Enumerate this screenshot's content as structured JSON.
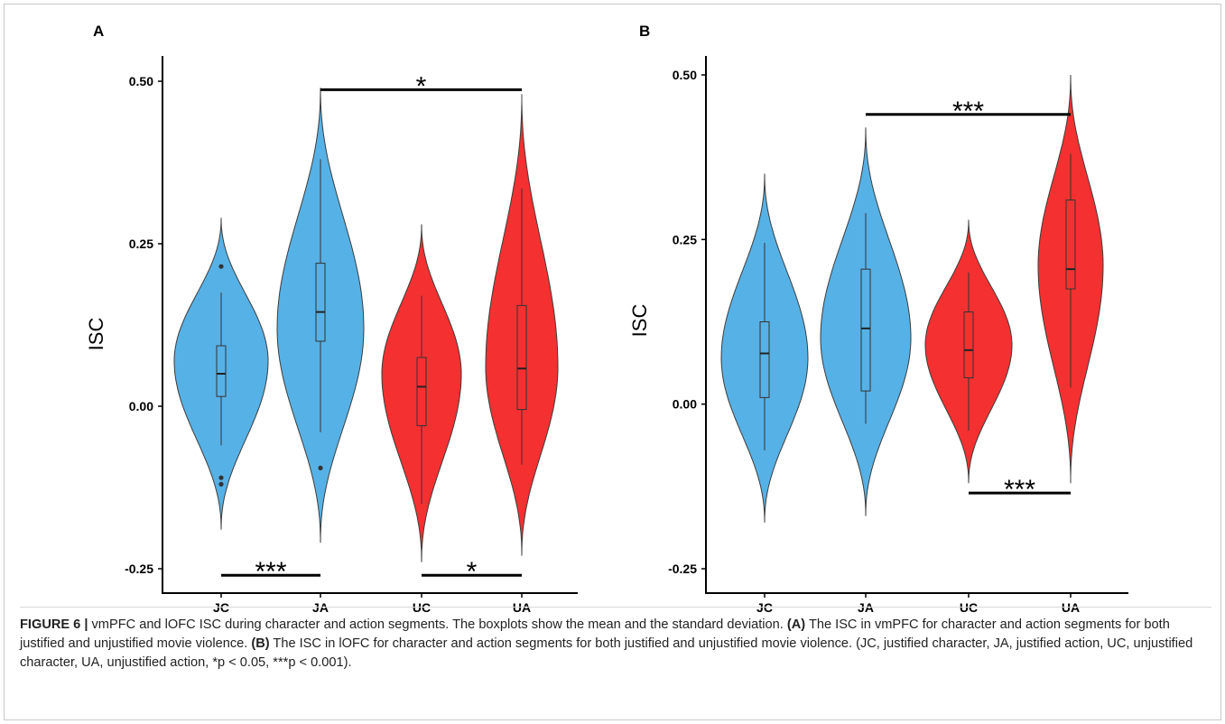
{
  "chart_data": [
    {
      "type": "violin",
      "panel_label": "A",
      "ylabel": "ISC",
      "ylim": [
        -0.25,
        0.5
      ],
      "yticks": [
        -0.25,
        0.0,
        0.25,
        0.5
      ],
      "ytick_labels": [
        "-0.25",
        "0.00",
        "0.25",
        "0.50"
      ],
      "categories": [
        "JC",
        "JA",
        "UC",
        "UA"
      ],
      "colors": [
        "#56b1e6",
        "#56b1e6",
        "#f43030",
        "#f43030"
      ],
      "groups": [
        {
          "name": "JC",
          "min": -0.19,
          "max": 0.29,
          "peak": 0.07,
          "q1": 0.015,
          "median": 0.05,
          "q3": 0.093,
          "whisker_low": -0.06,
          "whisker_high": 0.175,
          "outliers": [
            0.215,
            -0.11,
            -0.12
          ]
        },
        {
          "name": "JA",
          "min": -0.21,
          "max": 0.49,
          "peak": 0.12,
          "q1": 0.1,
          "median": 0.145,
          "q3": 0.22,
          "whisker_low": -0.04,
          "whisker_high": 0.38,
          "outliers": [
            -0.095
          ]
        },
        {
          "name": "UC",
          "min": -0.24,
          "max": 0.28,
          "peak": 0.05,
          "q1": -0.03,
          "median": 0.03,
          "q3": 0.075,
          "whisker_low": -0.15,
          "whisker_high": 0.17,
          "outliers": []
        },
        {
          "name": "UA",
          "min": -0.23,
          "max": 0.48,
          "peak": 0.06,
          "q1": -0.005,
          "median": 0.058,
          "q3": 0.155,
          "whisker_low": -0.09,
          "whisker_high": 0.335,
          "outliers": []
        }
      ],
      "significance": [
        {
          "from": "JC",
          "to": "JA",
          "label": "***",
          "y": -0.26
        },
        {
          "from": "UC",
          "to": "UA",
          "label": "*",
          "y": -0.26
        },
        {
          "from": "JA",
          "to": "UA",
          "label": "*",
          "y": 0.487
        }
      ]
    },
    {
      "type": "violin",
      "panel_label": "B",
      "ylabel": "ISC",
      "ylim": [
        -0.25,
        0.5
      ],
      "yticks": [
        -0.25,
        0.0,
        0.25,
        0.5
      ],
      "ytick_labels": [
        "-0.25",
        "0.00",
        "0.25",
        "0.50"
      ],
      "categories": [
        "JC",
        "JA",
        "UC",
        "UA"
      ],
      "colors": [
        "#56b1e6",
        "#56b1e6",
        "#f43030",
        "#f43030"
      ],
      "groups": [
        {
          "name": "JC",
          "min": -0.18,
          "max": 0.35,
          "peak": 0.07,
          "q1": 0.01,
          "median": 0.077,
          "q3": 0.125,
          "whisker_low": -0.07,
          "whisker_high": 0.245,
          "outliers": []
        },
        {
          "name": "JA",
          "min": -0.17,
          "max": 0.42,
          "peak": 0.1,
          "q1": 0.02,
          "median": 0.115,
          "q3": 0.205,
          "whisker_low": -0.03,
          "whisker_high": 0.29,
          "outliers": []
        },
        {
          "name": "UC",
          "min": -0.12,
          "max": 0.28,
          "peak": 0.09,
          "q1": 0.04,
          "median": 0.082,
          "q3": 0.14,
          "whisker_low": -0.04,
          "whisker_high": 0.2,
          "outliers": []
        },
        {
          "name": "UA",
          "min": -0.12,
          "max": 0.5,
          "peak": 0.21,
          "q1": 0.175,
          "median": 0.205,
          "q3": 0.31,
          "whisker_low": 0.025,
          "whisker_high": 0.38,
          "outliers": []
        }
      ],
      "significance": [
        {
          "from": "JA",
          "to": "UA",
          "label": "***",
          "y": 0.44
        },
        {
          "from": "UC",
          "to": "UA",
          "label": "***",
          "y": -0.135
        }
      ]
    }
  ],
  "caption": {
    "figure_label": "FIGURE 6 |",
    "text_1": " vmPFC and lOFC ISC during character and action segments. The boxplots show the mean and the standard deviation. ",
    "label_a": "(A)",
    "text_2": " The ISC in vmPFC for character and action segments for both justified and unjustified movie violence. ",
    "label_b": "(B)",
    "text_3": " The ISC in lOFC for character and action segments for both justified and unjustified movie violence. (JC, justified character, JA, justified action, UC, unjustified character, UA, unjustified action, *p < 0.05, ***p < 0.001)."
  }
}
